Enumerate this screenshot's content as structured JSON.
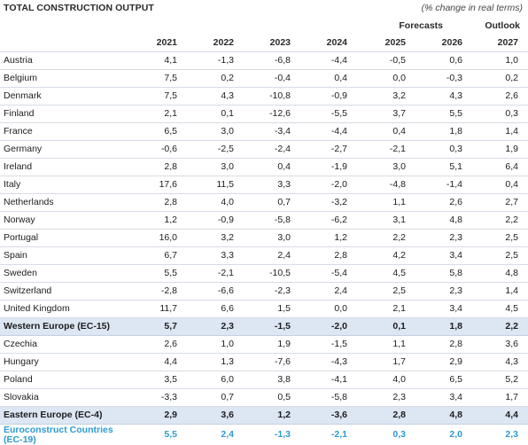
{
  "title": "TOTAL CONSTRUCTION OUTPUT",
  "unit_note": "(% change in real terms)",
  "group_labels": {
    "forecasts": "Forecasts",
    "outlook": "Outlook"
  },
  "years": [
    "2021",
    "2022",
    "2023",
    "2024",
    "2025",
    "2026",
    "2027"
  ],
  "rows": [
    {
      "country": "Austria",
      "values": [
        "4,1",
        "-1,3",
        "-6,8",
        "-4,4",
        "-0,5",
        "0,6",
        "1,0"
      ]
    },
    {
      "country": "Belgium",
      "values": [
        "7,5",
        "0,2",
        "-0,4",
        "0,4",
        "0,0",
        "-0,3",
        "0,2"
      ]
    },
    {
      "country": "Denmark",
      "values": [
        "7,5",
        "4,3",
        "-10,8",
        "-0,9",
        "3,2",
        "4,3",
        "2,6"
      ]
    },
    {
      "country": "Finland",
      "values": [
        "2,1",
        "0,1",
        "-12,6",
        "-5,5",
        "3,7",
        "5,5",
        "0,3"
      ]
    },
    {
      "country": "France",
      "values": [
        "6,5",
        "3,0",
        "-3,4",
        "-4,4",
        "0,4",
        "1,8",
        "1,4"
      ]
    },
    {
      "country": "Germany",
      "values": [
        "-0,6",
        "-2,5",
        "-2,4",
        "-2,7",
        "-2,1",
        "0,3",
        "1,9"
      ]
    },
    {
      "country": "Ireland",
      "values": [
        "2,8",
        "3,0",
        "0,4",
        "-1,9",
        "3,0",
        "5,1",
        "6,4"
      ]
    },
    {
      "country": "Italy",
      "values": [
        "17,6",
        "11,5",
        "3,3",
        "-2,0",
        "-4,8",
        "-1,4",
        "0,4"
      ]
    },
    {
      "country": "Netherlands",
      "values": [
        "2,8",
        "4,0",
        "0,7",
        "-3,2",
        "1,1",
        "2,6",
        "2,7"
      ]
    },
    {
      "country": "Norway",
      "values": [
        "1,2",
        "-0,9",
        "-5,8",
        "-6,2",
        "3,1",
        "4,8",
        "2,2"
      ]
    },
    {
      "country": "Portugal",
      "values": [
        "16,0",
        "3,2",
        "3,0",
        "1,2",
        "2,2",
        "2,3",
        "2,5"
      ]
    },
    {
      "country": "Spain",
      "values": [
        "6,7",
        "3,3",
        "2,4",
        "2,8",
        "4,2",
        "3,4",
        "2,5"
      ]
    },
    {
      "country": "Sweden",
      "values": [
        "5,5",
        "-2,1",
        "-10,5",
        "-5,4",
        "4,5",
        "5,8",
        "4,8"
      ]
    },
    {
      "country": "Switzerland",
      "values": [
        "-2,8",
        "-6,6",
        "-2,3",
        "2,4",
        "2,5",
        "2,3",
        "1,4"
      ]
    },
    {
      "country": "United Kingdom",
      "values": [
        "11,7",
        "6,6",
        "1,5",
        "0,0",
        "2,1",
        "3,4",
        "4,5"
      ]
    },
    {
      "country": "Western Europe (EC-15)",
      "values": [
        "5,7",
        "2,3",
        "-1,5",
        "-2,0",
        "0,1",
        "1,8",
        "2,2"
      ],
      "kind": "subtotal"
    },
    {
      "country": "Czechia",
      "values": [
        "2,6",
        "1,0",
        "1,9",
        "-1,5",
        "1,1",
        "2,8",
        "3,6"
      ]
    },
    {
      "country": "Hungary",
      "values": [
        "4,4",
        "1,3",
        "-7,6",
        "-4,3",
        "1,7",
        "2,9",
        "4,3"
      ]
    },
    {
      "country": "Poland",
      "values": [
        "3,5",
        "6,0",
        "3,8",
        "-4,1",
        "4,0",
        "6,5",
        "5,2"
      ]
    },
    {
      "country": "Slovakia",
      "values": [
        "-3,3",
        "0,7",
        "0,5",
        "-5,8",
        "2,3",
        "3,4",
        "1,7"
      ]
    },
    {
      "country": "Eastern Europe (EC-4)",
      "values": [
        "2,9",
        "3,6",
        "1,2",
        "-3,6",
        "2,8",
        "4,8",
        "4,4"
      ],
      "kind": "subtotal"
    },
    {
      "country": "Euroconstruct Countries (EC-19)",
      "values": [
        "5,5",
        "2,4",
        "-1,3",
        "-2,1",
        "0,3",
        "2,0",
        "2,3"
      ],
      "kind": "total"
    }
  ]
}
